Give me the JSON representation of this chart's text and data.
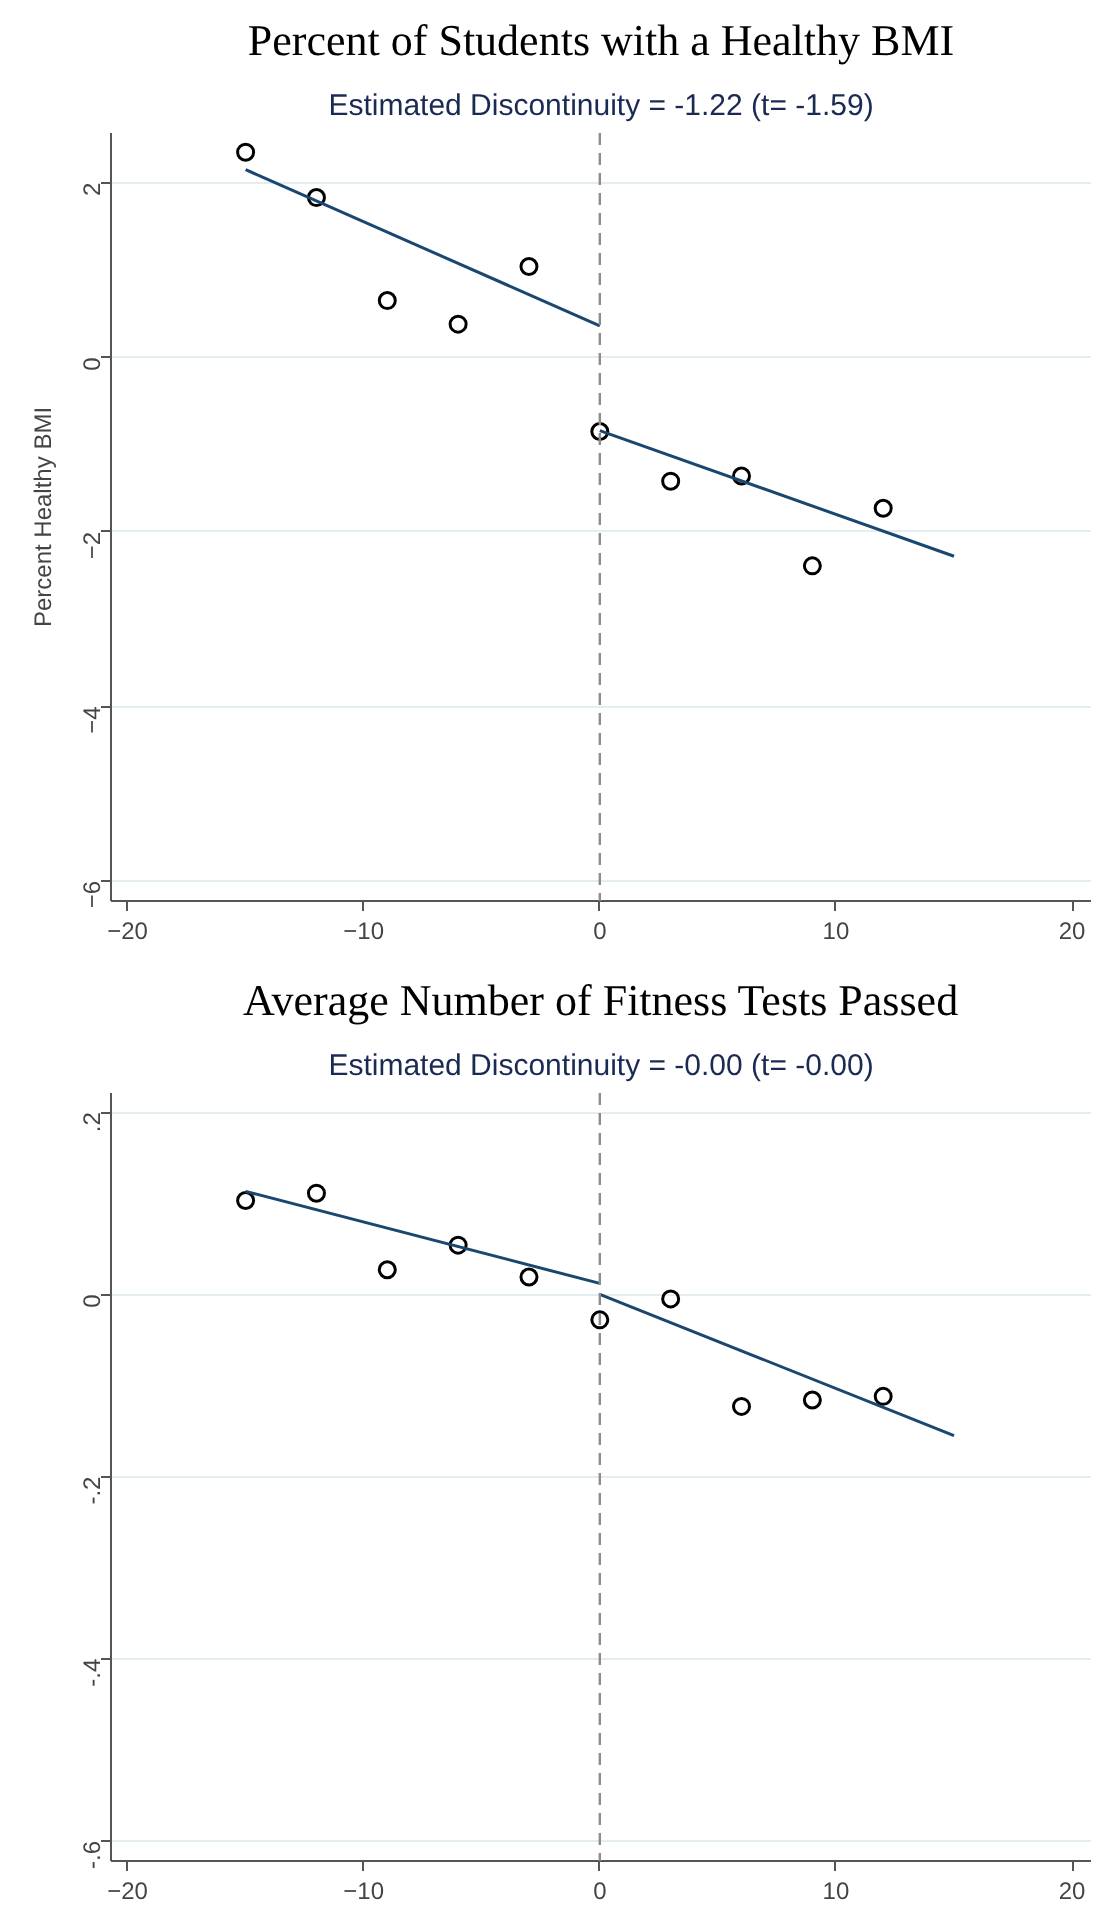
{
  "chart_data": [
    {
      "type": "scatter",
      "title": "Percent of Students with a Healthy BMI",
      "subtitle": "Estimated Discontinuity = -1.22 (t= -1.59)",
      "ylabel": "Percent Healthy BMI",
      "xlim": [
        -20.7,
        20.8
      ],
      "ylim": [
        -6.23,
        2.57
      ],
      "xticks": [
        -20,
        -10,
        0,
        10,
        20
      ],
      "yticks": [
        -6,
        -4,
        -2,
        0,
        2
      ],
      "grid": "y",
      "series": [
        {
          "color": "#000000",
          "marker": "circle",
          "x": [
            -15,
            -12,
            -9,
            -6,
            -3,
            0,
            3,
            6,
            9,
            12
          ],
          "values": [
            2.35,
            1.83,
            0.65,
            0.38,
            1.04,
            -0.85,
            -1.42,
            -1.36,
            -2.39,
            -1.73
          ]
        },
        {
          "type": "line",
          "color": "#1a476f",
          "x": [
            -15,
            0
          ],
          "values": [
            2.15,
            0.36
          ]
        },
        {
          "type": "line",
          "color": "#1a476f",
          "x": [
            0,
            15
          ],
          "values": [
            -0.84,
            -2.28
          ]
        }
      ],
      "ref_lines": [
        {
          "axis": "x",
          "value": 0,
          "color": "#8c8c8c",
          "line_style": "dashed"
        }
      ]
    },
    {
      "type": "scatter",
      "title": "Average Number of Fitness Tests Passed",
      "subtitle": "Estimated Discontinuity = -0.00 (t= -0.00)",
      "xlim": [
        -20.7,
        20.8
      ],
      "ylim": [
        -0.622,
        0.221
      ],
      "xticks": [
        -20,
        -10,
        0,
        10,
        20
      ],
      "yticks": [
        {
          "value": -0.6,
          "label": "-.6"
        },
        {
          "value": -0.4,
          "label": "-.4"
        },
        {
          "value": -0.2,
          "label": "-.2"
        },
        0,
        {
          "value": 0.2,
          "label": ".2"
        }
      ],
      "grid": "y",
      "series": [
        {
          "color": "#000000",
          "marker": "circle",
          "x": [
            -15,
            -12,
            -9,
            -6,
            -3,
            0,
            3,
            6,
            9,
            12
          ],
          "values": [
            0.103,
            0.111,
            0.027,
            0.054,
            0.019,
            -0.028,
            -0.005,
            -0.123,
            -0.116,
            -0.112
          ]
        },
        {
          "type": "line",
          "color": "#1a476f",
          "x": [
            -15,
            0
          ],
          "values": [
            0.113,
            0.012
          ]
        },
        {
          "type": "line",
          "color": "#1a476f",
          "x": [
            0,
            15
          ],
          "values": [
            0.0,
            -0.155
          ]
        }
      ],
      "ref_lines": [
        {
          "axis": "x",
          "value": 0,
          "color": "#8c8c8c",
          "line_style": "dashed"
        }
      ]
    }
  ]
}
